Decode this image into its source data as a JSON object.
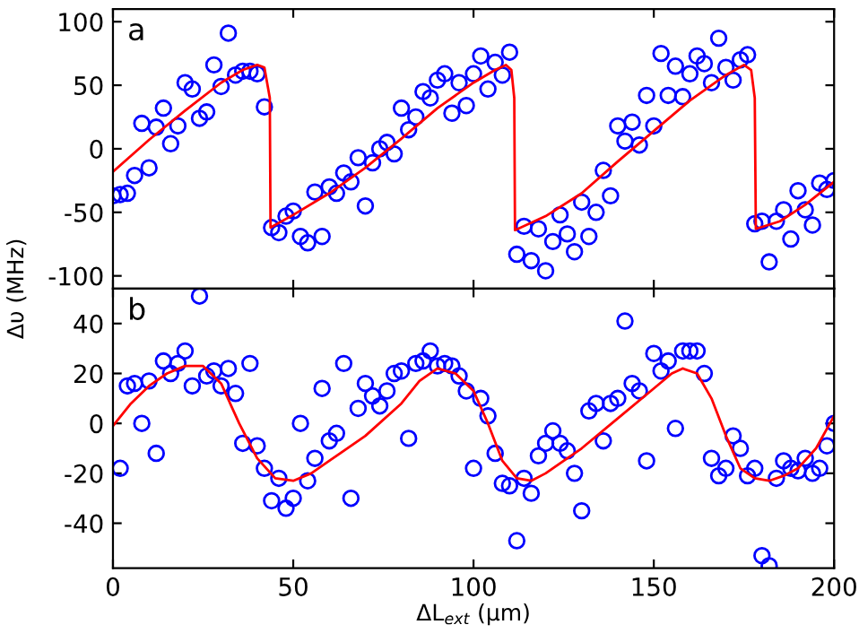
{
  "chart_data": [
    {
      "type": "scatter",
      "ylabel": "Δυ (MHz)",
      "annotations": [
        "a"
      ],
      "xlim": [
        0,
        200
      ],
      "xticks": [
        0,
        50,
        100,
        150,
        200
      ],
      "ylim": [
        -110,
        110
      ],
      "yticks": [
        -100,
        -50,
        0,
        50,
        100
      ],
      "tick_labels": "y",
      "grid": false,
      "legend": false,
      "series": [
        {
          "marker": "circle",
          "color": "#0000ff",
          "x": [
            0,
            2,
            4,
            6,
            8,
            10,
            12,
            14,
            16,
            18,
            20,
            22,
            24,
            26,
            28,
            30,
            32,
            34,
            36,
            38,
            40,
            42,
            44,
            46,
            48,
            50,
            52,
            54,
            56,
            58,
            60,
            62,
            64,
            66,
            68,
            70,
            72,
            74,
            76,
            78,
            80,
            82,
            84,
            86,
            88,
            90,
            92,
            94,
            96,
            98,
            100,
            102,
            104,
            106,
            108,
            110,
            112,
            114,
            116,
            118,
            120,
            122,
            124,
            126,
            128,
            130,
            132,
            134,
            136,
            138,
            140,
            142,
            144,
            146,
            148,
            150,
            152,
            154,
            156,
            158,
            160,
            162,
            164,
            166,
            168,
            170,
            172,
            174,
            176,
            178,
            180,
            182,
            184,
            186,
            188,
            190,
            192,
            194,
            196,
            198,
            200
          ],
          "values": [
            -37,
            -36,
            -35,
            -21,
            20,
            -15,
            17,
            32,
            4,
            18,
            52,
            47,
            24,
            29,
            66,
            49,
            91,
            58,
            61,
            61,
            59,
            33,
            -62,
            -66,
            -53,
            -49,
            -69,
            -74,
            -34,
            -69,
            -30,
            -35,
            -19,
            -26,
            -7,
            -45,
            -11,
            0,
            5,
            -4,
            32,
            15,
            25,
            45,
            40,
            54,
            59,
            28,
            52,
            34,
            59,
            73,
            47,
            68,
            58,
            76,
            -83,
            -61,
            -88,
            -63,
            -96,
            -73,
            -52,
            -67,
            -81,
            -42,
            -69,
            -50,
            -17,
            -37,
            18,
            6,
            21,
            3,
            42,
            18,
            75,
            42,
            65,
            41,
            59,
            73,
            67,
            52,
            87,
            64,
            54,
            70,
            74,
            -59,
            -57,
            -89,
            -57,
            -48,
            -71,
            -33,
            -48,
            -60,
            -27,
            -32,
            -25
          ]
        },
        {
          "type": "line",
          "marker": "none",
          "line_style": "solid",
          "color": "#ff0000",
          "x": [
            0,
            10,
            20,
            30,
            36,
            40,
            42,
            43.5,
            43.7,
            50,
            60,
            70,
            80,
            90,
            100,
            106,
            109,
            110.5,
            111.3,
            111.5,
            120,
            130,
            140,
            150,
            160,
            170,
            175,
            177,
            178,
            178.3,
            185,
            192,
            200
          ],
          "values": [
            -18,
            7,
            30,
            52,
            62,
            66,
            64,
            40,
            -62,
            -52,
            -35,
            -15,
            8,
            32,
            52,
            62,
            66,
            62,
            40,
            -64,
            -53,
            -35,
            -10,
            14,
            38,
            58,
            66,
            62,
            40,
            -63,
            -57,
            -44,
            -26
          ]
        }
      ]
    },
    {
      "type": "scatter",
      "xlabel": "ΔL$_{ext}$ (μm)",
      "annotations": [
        "b"
      ],
      "xlim": [
        0,
        200
      ],
      "xticks": [
        0,
        50,
        100,
        150,
        200
      ],
      "ylim": [
        -58,
        54
      ],
      "yticks": [
        -40,
        -20,
        0,
        20,
        40
      ],
      "grid": false,
      "legend": false,
      "series": [
        {
          "marker": "circle",
          "color": "#0000ff",
          "x": [
            2,
            4,
            6,
            8,
            10,
            12,
            14,
            16,
            18,
            20,
            22,
            24,
            26,
            28,
            30,
            32,
            34,
            36,
            38,
            40,
            42,
            44,
            46,
            48,
            50,
            52,
            54,
            56,
            58,
            60,
            62,
            64,
            66,
            68,
            70,
            72,
            74,
            76,
            78,
            80,
            82,
            84,
            86,
            88,
            90,
            92,
            94,
            96,
            98,
            100,
            102,
            104,
            106,
            108,
            110,
            112,
            114,
            116,
            118,
            120,
            122,
            124,
            126,
            128,
            130,
            132,
            134,
            136,
            138,
            140,
            142,
            144,
            146,
            148,
            150,
            152,
            154,
            156,
            158,
            160,
            162,
            164,
            166,
            168,
            170,
            172,
            174,
            176,
            178,
            180,
            182,
            184,
            186,
            188,
            190,
            192,
            194,
            196,
            198,
            200
          ],
          "values": [
            -18,
            15,
            16,
            0,
            17,
            -12,
            25,
            20,
            24,
            29,
            15,
            51,
            19,
            21,
            15,
            22,
            12,
            -8,
            24,
            -9,
            -18,
            -31,
            -22,
            -34,
            -30,
            0,
            -23,
            -14,
            14,
            -7,
            -4,
            24,
            -30,
            6,
            16,
            11,
            7,
            13,
            20,
            21,
            -6,
            24,
            25,
            29,
            23,
            24,
            23,
            19,
            13,
            -18,
            10,
            3,
            -12,
            -24,
            -25,
            -47,
            -22,
            -28,
            -13,
            -8,
            -3,
            -8,
            -11,
            -20,
            -35,
            5,
            8,
            -7,
            8,
            10,
            41,
            16,
            13,
            -15,
            28,
            21,
            25,
            -2,
            29,
            29,
            29,
            20,
            -14,
            -21,
            -18,
            -5,
            -10,
            -21,
            -18,
            -53,
            -57,
            -22,
            -15,
            -18,
            -19,
            -14,
            -20,
            -18,
            -9,
            0
          ]
        },
        {
          "type": "line",
          "marker": "none",
          "line_style": "solid",
          "color": "#ff0000",
          "x": [
            0,
            5,
            10,
            15,
            20,
            25,
            30,
            35,
            40,
            45,
            50,
            55,
            60,
            70,
            80,
            85,
            90,
            95,
            100,
            104,
            108,
            112,
            116,
            120,
            130,
            140,
            150,
            155,
            158,
            162,
            166,
            170,
            174,
            178,
            182,
            186,
            190,
            195,
            200
          ],
          "values": [
            -1,
            8,
            15,
            20,
            23,
            23,
            16,
            0,
            -14,
            -22,
            -23,
            -20,
            -15,
            -5,
            8,
            17,
            22,
            20,
            13,
            0,
            -15,
            -22,
            -23,
            -20,
            -10,
            2,
            14,
            20,
            22,
            20,
            10,
            -5,
            -18,
            -22,
            -23,
            -21,
            -18,
            -10,
            3
          ]
        }
      ]
    }
  ]
}
